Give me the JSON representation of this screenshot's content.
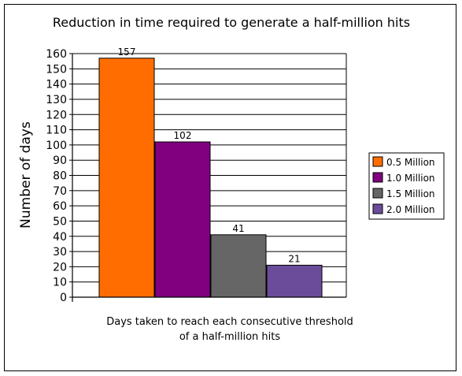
{
  "chart_data": {
    "type": "bar",
    "title": "Reduction in time required to generate a half-million hits",
    "xlabel": "Days taken to reach each consecutive threshold of a half-million hits",
    "xlabel_lines": [
      "Days taken to reach each consecutive threshold",
      "of a half-million hits"
    ],
    "ylabel": "Number of days",
    "ylim": [
      0,
      160
    ],
    "ytick_step": 10,
    "grid": true,
    "legend_position": "right",
    "series": [
      {
        "name": "0.5 Million",
        "value": 157,
        "value_label": "157",
        "color": "#ff6d00"
      },
      {
        "name": "1.0 Million",
        "value": 102,
        "value_label": "102",
        "color": "#800080"
      },
      {
        "name": "1.5 Million",
        "value": 41,
        "value_label": "41",
        "color": "#666666"
      },
      {
        "name": "2.0 Million",
        "value": 21,
        "value_label": "21",
        "color": "#6b4c9a"
      }
    ]
  }
}
